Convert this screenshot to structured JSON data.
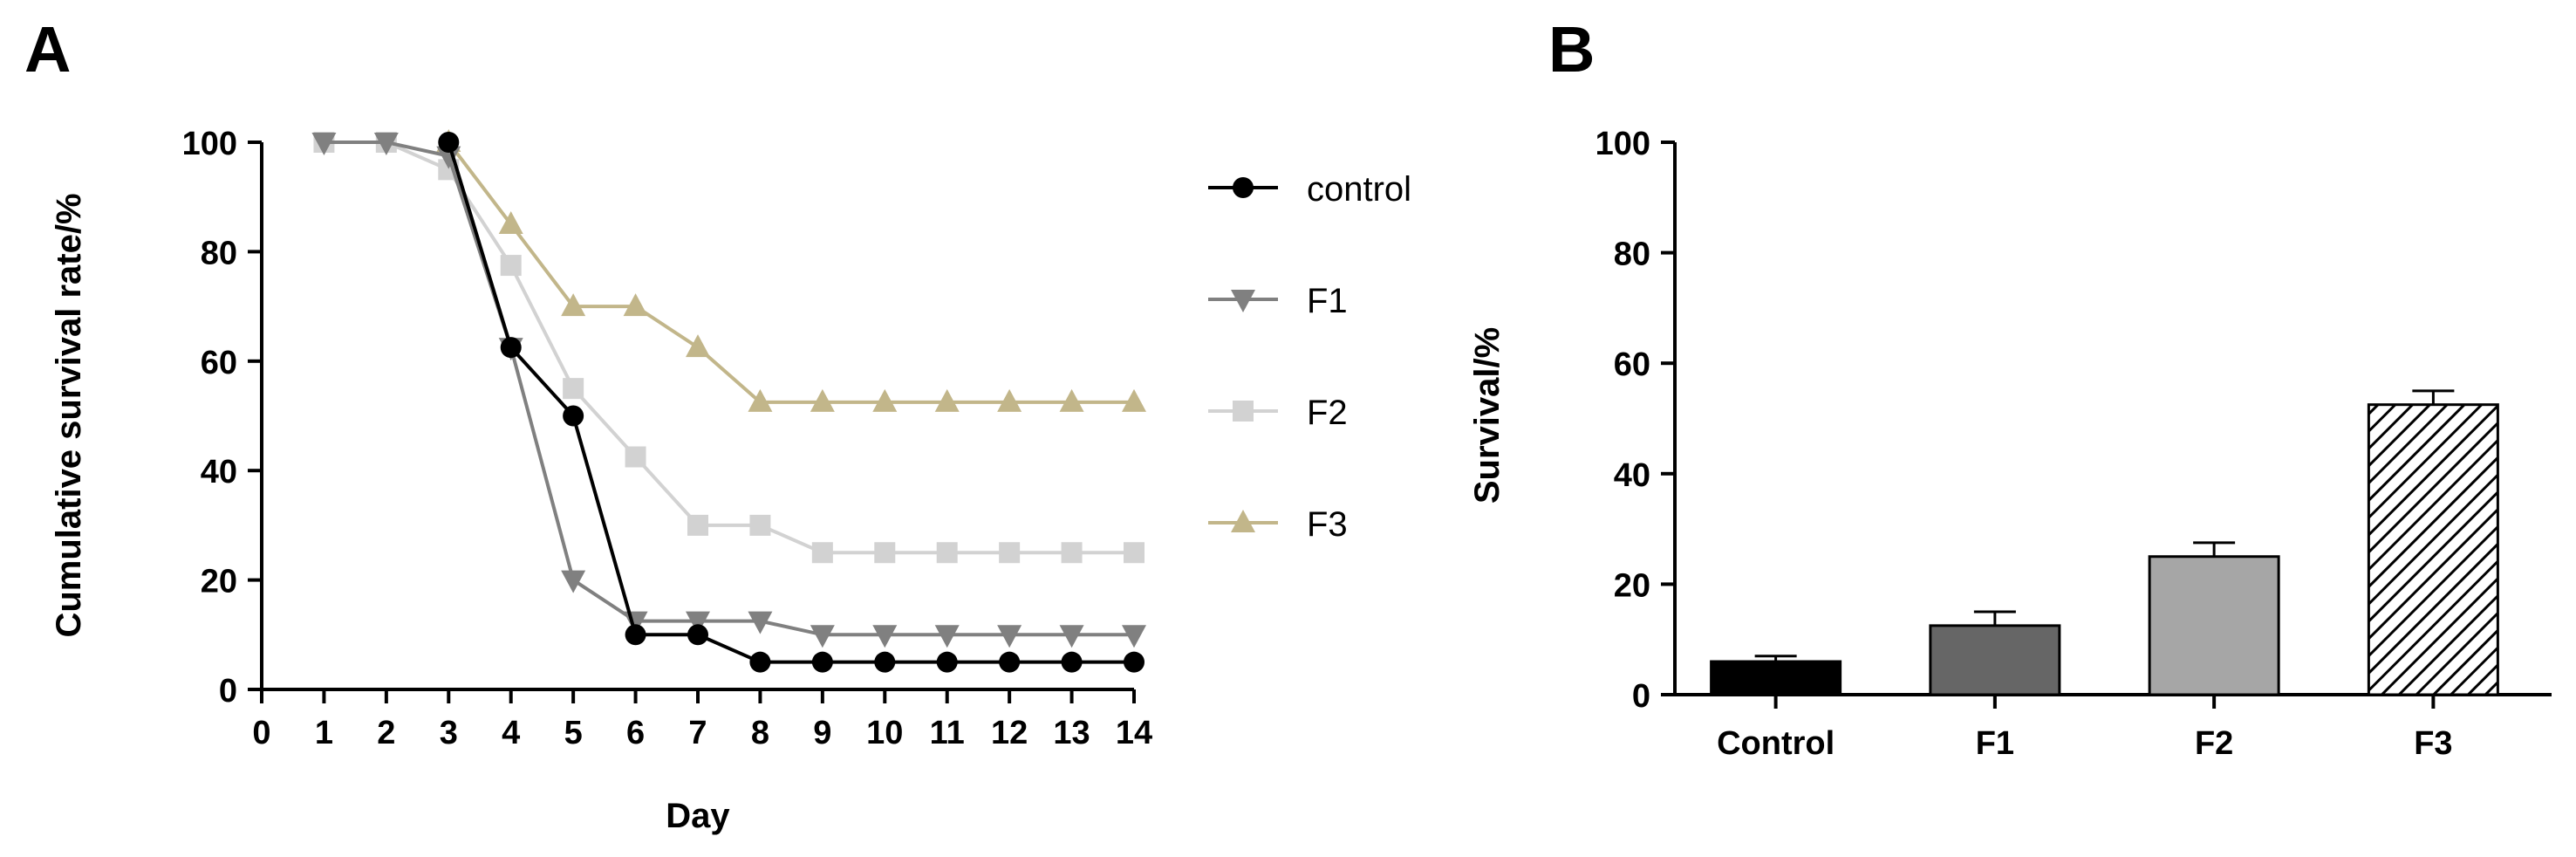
{
  "panels": {
    "a": {
      "letter": "A"
    },
    "b": {
      "letter": "B"
    }
  },
  "chart_data": [
    {
      "type": "line",
      "xlabel": "Day",
      "ylabel": "Cumulative survival rate/%",
      "xlim": [
        0,
        14
      ],
      "ylim": [
        0,
        100
      ],
      "xticks": [
        0,
        1,
        2,
        3,
        4,
        5,
        6,
        7,
        8,
        9,
        10,
        11,
        12,
        13,
        14
      ],
      "yticks": [
        0,
        20,
        40,
        60,
        80,
        100
      ],
      "grid": false,
      "legend_position": "right",
      "series": [
        {
          "name": "control",
          "marker": "circle",
          "color": "#000000",
          "x": [
            3,
            4,
            5,
            6,
            7,
            8,
            9,
            10,
            11,
            12,
            13,
            14
          ],
          "y": [
            100,
            62.5,
            50,
            10,
            10,
            5,
            5,
            5,
            5,
            5,
            5,
            5
          ]
        },
        {
          "name": "F1",
          "marker": "triangle-down",
          "color": "#808080",
          "x": [
            1,
            2,
            3,
            4,
            5,
            6,
            7,
            8,
            9,
            10,
            11,
            12,
            13,
            14
          ],
          "y": [
            100,
            100,
            97.5,
            62.5,
            20,
            12.5,
            12.5,
            12.5,
            10,
            10,
            10,
            10,
            10,
            10
          ]
        },
        {
          "name": "F2",
          "marker": "square",
          "color": "#d2d2d2",
          "x": [
            1,
            2,
            3,
            4,
            5,
            6,
            7,
            8,
            9,
            10,
            11,
            12,
            13,
            14
          ],
          "y": [
            100,
            100,
            95,
            77.5,
            55,
            42.5,
            30,
            30,
            25,
            25,
            25,
            25,
            25,
            25
          ]
        },
        {
          "name": "F3",
          "marker": "triangle-up",
          "color": "#c2b68a",
          "x": [
            3,
            4,
            5,
            6,
            7,
            8,
            9,
            10,
            11,
            12,
            13,
            14
          ],
          "y": [
            100,
            85,
            70,
            70,
            62.5,
            52.5,
            52.5,
            52.5,
            52.5,
            52.5,
            52.5,
            52.5
          ]
        }
      ]
    },
    {
      "type": "bar",
      "ylabel": "Survival/%",
      "xlabel": "",
      "ylim": [
        0,
        100
      ],
      "yticks": [
        0,
        20,
        40,
        60,
        80,
        100
      ],
      "grid": false,
      "categories": [
        "Control",
        "F1",
        "F2",
        "F3"
      ],
      "values": [
        6,
        12.5,
        25,
        52.5
      ],
      "error": [
        1,
        2.5,
        2.5,
        2.5
      ],
      "fills": [
        {
          "style": "solid",
          "color": "#000000"
        },
        {
          "style": "solid",
          "color": "#666666"
        },
        {
          "style": "solid",
          "color": "#a6a6a6"
        },
        {
          "style": "hatch",
          "color": "#000000"
        }
      ]
    }
  ]
}
